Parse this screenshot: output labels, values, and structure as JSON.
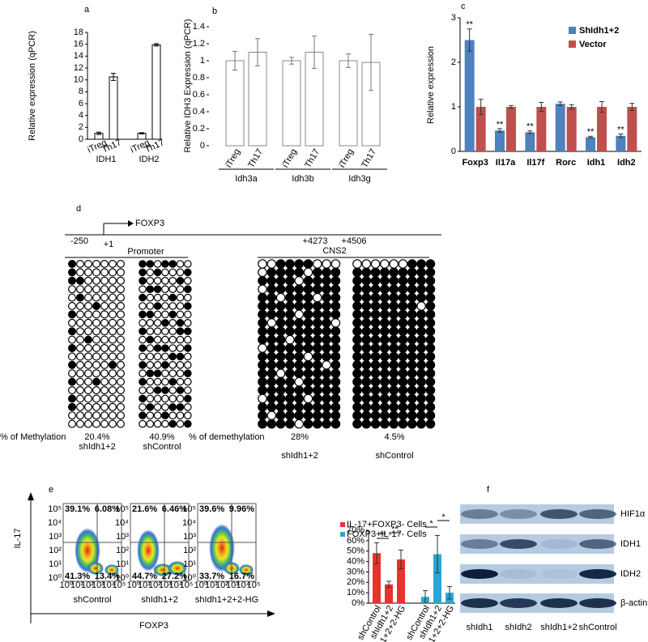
{
  "chart_data": [
    {
      "type": "bar",
      "label": "a",
      "ylabel": "Relative expression (qPCR)",
      "categories": [
        "iTreg",
        "Th17",
        "iTreg",
        "Th17"
      ],
      "groups": [
        "IDH1",
        "IDH2"
      ],
      "values": [
        1,
        10.5,
        1,
        15.9
      ],
      "errors": [
        0.2,
        0.6,
        0.1,
        0.2
      ],
      "color": "#ffffff",
      "ylim": [
        0,
        18
      ],
      "yticks": [
        0,
        2,
        4,
        6,
        8,
        10,
        12,
        14,
        16,
        18
      ]
    },
    {
      "type": "bar",
      "label": "b",
      "ylabel": "Relative IDH3 Expression (qPCR)",
      "categories": [
        "iTreg",
        "Th17",
        "iTreg",
        "Th17",
        "iTreg",
        "Th17"
      ],
      "groups": [
        "Idh3a",
        "Idh3b",
        "Idh3g"
      ],
      "values": [
        1.0,
        1.1,
        1.0,
        1.1,
        1.0,
        0.98
      ],
      "errors": [
        0.11,
        0.16,
        0.04,
        0.19,
        0.08,
        0.33
      ],
      "color": "#ffffff",
      "ylim": [
        0,
        1.4
      ],
      "yticks": [
        0,
        0.2,
        0.4,
        0.6,
        0.8,
        1,
        1.2,
        1.4
      ]
    },
    {
      "type": "bar",
      "label": "c",
      "ylabel": "Relative expression",
      "categories": [
        "Foxp3",
        "Il17a",
        "Il17f",
        "Rorc",
        "Idh1",
        "Idh2"
      ],
      "series": [
        {
          "name": "ShIdh1+2",
          "color": "#4f81bd",
          "values": [
            2.5,
            0.47,
            0.43,
            1.07,
            0.32,
            0.35
          ],
          "errors": [
            0.25,
            0.04,
            0.03,
            0.04,
            0.02,
            0.04
          ],
          "annotations": [
            "**",
            "**",
            "**",
            null,
            "**",
            "**"
          ]
        },
        {
          "name": "Vector",
          "color": "#c0504d",
          "values": [
            1,
            1,
            1,
            1,
            1,
            1
          ],
          "errors": [
            0.17,
            0.03,
            0.1,
            0.05,
            0.12,
            0.08
          ]
        }
      ],
      "ylim": [
        0,
        3
      ],
      "yticks": [
        0,
        1,
        2,
        3
      ],
      "legend": "top-right"
    },
    {
      "type": "bar",
      "categories": [
        "shControl",
        "shIdh1+2",
        "shIdh1+2+2-HG",
        "shControl",
        "shIdh1+2",
        "shIdh1+2+2-HG"
      ],
      "series": [
        {
          "name": "IL-17+FOXP3- Cells",
          "color": "#e8322d",
          "values": [
            48,
            18,
            42,
            null,
            null,
            null
          ],
          "errors": [
            10,
            3,
            9,
            null,
            null,
            null
          ]
        },
        {
          "name": "FOXP3+IL-17- Cells",
          "color": "#2aa6d6",
          "values": [
            null,
            null,
            null,
            6,
            47,
            10
          ],
          "errors": [
            null,
            null,
            null,
            6,
            18,
            6
          ]
        }
      ],
      "annotations": [
        "**",
        "**",
        "*",
        "*"
      ],
      "ylim": [
        0,
        70
      ],
      "yticks": [
        {
          "value": 0,
          "label": "0%"
        },
        {
          "value": 10,
          "label": "10%"
        },
        {
          "value": 20,
          "label": "20%"
        },
        {
          "value": 30,
          "label": "30%"
        },
        {
          "value": 40,
          "label": "40%"
        },
        {
          "value": 50,
          "label": "50%"
        },
        {
          "value": 60,
          "label": "60%"
        },
        {
          "value": 70,
          "label": "70%"
        }
      ],
      "legend": "top-left"
    }
  ],
  "panel_d": {
    "label": "d",
    "gene": "FOXP3",
    "positions": [
      "-250",
      "+1",
      "+4273",
      "+4506"
    ],
    "methylation_label": "% of Methylation",
    "demethylation_label": "% of demethylation",
    "promoter": {
      "name": "Promoter",
      "groups": [
        {
          "percent": "20.4%",
          "sample": "shIdh1+2",
          "rows": [
            [
              1,
              0,
              0,
              0,
              0,
              0,
              0
            ],
            [
              1,
              0,
              0,
              0,
              0,
              0,
              0
            ],
            [
              1,
              1,
              0,
              0,
              0,
              0,
              0
            ],
            [
              0,
              0,
              0,
              0,
              0,
              0,
              0
            ],
            [
              0,
              1,
              0,
              0,
              0,
              0,
              0
            ],
            [
              0,
              0,
              0,
              1,
              0,
              0,
              0
            ],
            [
              1,
              0,
              0,
              0,
              0,
              0,
              0
            ],
            [
              0,
              0,
              0,
              0,
              0,
              0,
              0
            ],
            [
              1,
              0,
              0,
              0,
              0,
              0,
              0
            ],
            [
              0,
              0,
              1,
              0,
              0,
              0,
              0
            ],
            [
              1,
              0,
              0,
              0,
              0,
              0,
              0
            ],
            [
              0,
              0,
              0,
              0,
              0,
              0,
              0
            ],
            [
              1,
              0,
              0,
              0,
              0,
              1,
              0
            ],
            [
              0,
              0,
              0,
              0,
              0,
              0,
              0
            ],
            [
              1,
              0,
              0,
              1,
              0,
              0,
              0
            ],
            [
              0,
              0,
              0,
              0,
              0,
              0,
              0
            ],
            [
              1,
              0,
              0,
              0,
              0,
              0,
              0
            ],
            [
              1,
              0,
              0,
              0,
              0,
              0,
              0
            ],
            [
              0,
              0,
              0,
              0,
              0,
              0,
              0
            ],
            [
              0,
              0,
              0,
              0,
              0,
              0,
              0
            ]
          ]
        },
        {
          "percent": "40.9%",
          "sample": "shControl",
          "rows": [
            [
              1,
              1,
              0,
              1,
              1,
              0,
              0
            ],
            [
              1,
              0,
              1,
              0,
              0,
              0,
              1
            ],
            [
              1,
              0,
              0,
              0,
              0,
              1,
              0
            ],
            [
              0,
              1,
              1,
              0,
              0,
              0,
              1
            ],
            [
              1,
              0,
              0,
              0,
              1,
              0,
              0
            ],
            [
              0,
              0,
              1,
              0,
              0,
              0,
              1
            ],
            [
              1,
              1,
              0,
              0,
              1,
              0,
              0
            ],
            [
              0,
              0,
              0,
              1,
              0,
              1,
              0
            ],
            [
              1,
              0,
              0,
              0,
              0,
              1,
              1
            ],
            [
              0,
              1,
              0,
              0,
              0,
              0,
              0
            ],
            [
              1,
              0,
              1,
              1,
              0,
              0,
              1
            ],
            [
              0,
              0,
              0,
              0,
              1,
              1,
              0
            ],
            [
              1,
              0,
              0,
              1,
              0,
              0,
              0
            ],
            [
              0,
              1,
              1,
              0,
              0,
              0,
              1
            ],
            [
              1,
              0,
              0,
              0,
              1,
              0,
              0
            ],
            [
              0,
              0,
              1,
              1,
              0,
              1,
              0
            ],
            [
              1,
              0,
              0,
              0,
              0,
              0,
              1
            ],
            [
              0,
              1,
              0,
              0,
              1,
              1,
              0
            ],
            [
              1,
              0,
              0,
              1,
              0,
              0,
              0
            ],
            [
              0,
              0,
              0,
              0,
              1,
              0,
              1
            ]
          ]
        }
      ]
    },
    "cns2": {
      "name": "CNS2",
      "groups": [
        {
          "percent": "28%",
          "sample": "shIdh1+2",
          "rows": [
            [
              0,
              0,
              1,
              1,
              1,
              1,
              0,
              0,
              0
            ],
            [
              0,
              1,
              1,
              1,
              1,
              0,
              1,
              1,
              1
            ],
            [
              1,
              1,
              1,
              1,
              0,
              1,
              1,
              1,
              1
            ],
            [
              0,
              1,
              1,
              1,
              1,
              1,
              1,
              1,
              1
            ],
            [
              1,
              1,
              0,
              1,
              1,
              1,
              0,
              1,
              1
            ],
            [
              1,
              1,
              1,
              1,
              1,
              1,
              1,
              1,
              1
            ],
            [
              1,
              1,
              1,
              1,
              0,
              1,
              1,
              1,
              1
            ],
            [
              1,
              0,
              1,
              1,
              1,
              1,
              1,
              1,
              0
            ],
            [
              1,
              1,
              1,
              1,
              1,
              1,
              1,
              1,
              1
            ],
            [
              1,
              1,
              1,
              0,
              1,
              1,
              1,
              1,
              1
            ],
            [
              0,
              1,
              1,
              1,
              1,
              1,
              1,
              1,
              1
            ],
            [
              1,
              1,
              1,
              1,
              1,
              0,
              1,
              1,
              1
            ],
            [
              1,
              1,
              1,
              1,
              1,
              1,
              1,
              0,
              1
            ],
            [
              1,
              1,
              0,
              1,
              1,
              1,
              1,
              1,
              1
            ],
            [
              1,
              1,
              1,
              1,
              0,
              1,
              1,
              1,
              1
            ],
            [
              1,
              1,
              1,
              1,
              1,
              1,
              1,
              1,
              1
            ],
            [
              0,
              1,
              1,
              1,
              1,
              0,
              1,
              1,
              1
            ],
            [
              1,
              1,
              1,
              1,
              1,
              1,
              1,
              1,
              1
            ],
            [
              1,
              0,
              1,
              1,
              1,
              1,
              1,
              1,
              1
            ],
            [
              1,
              1,
              1,
              1,
              0,
              1,
              1,
              1,
              1
            ]
          ]
        },
        {
          "percent": "4.5%",
          "sample": "shControl",
          "rows": [
            [
              0,
              0,
              0,
              0,
              0,
              0,
              1,
              1,
              1
            ],
            [
              1,
              1,
              1,
              1,
              1,
              1,
              1,
              1,
              1
            ],
            [
              1,
              1,
              1,
              1,
              1,
              1,
              1,
              1,
              1
            ],
            [
              1,
              1,
              1,
              1,
              1,
              1,
              1,
              1,
              1
            ],
            [
              1,
              1,
              1,
              1,
              1,
              1,
              1,
              1,
              1
            ],
            [
              1,
              1,
              1,
              1,
              1,
              1,
              1,
              0,
              1
            ],
            [
              1,
              1,
              1,
              1,
              1,
              1,
              1,
              1,
              1
            ],
            [
              1,
              1,
              1,
              1,
              1,
              1,
              1,
              1,
              1
            ],
            [
              1,
              1,
              1,
              1,
              1,
              1,
              1,
              1,
              1
            ],
            [
              1,
              1,
              1,
              1,
              1,
              1,
              1,
              1,
              1
            ],
            [
              1,
              1,
              1,
              1,
              1,
              1,
              1,
              1,
              1
            ],
            [
              1,
              1,
              1,
              1,
              1,
              1,
              1,
              1,
              1
            ],
            [
              1,
              1,
              1,
              1,
              1,
              1,
              1,
              1,
              1
            ],
            [
              1,
              1,
              1,
              1,
              1,
              1,
              1,
              1,
              1
            ],
            [
              1,
              1,
              1,
              1,
              1,
              1,
              1,
              1,
              1
            ],
            [
              1,
              1,
              1,
              1,
              1,
              1,
              1,
              1,
              1
            ],
            [
              1,
              1,
              1,
              1,
              1,
              1,
              1,
              1,
              1
            ],
            [
              1,
              1,
              1,
              1,
              1,
              1,
              1,
              1,
              1
            ],
            [
              1,
              1,
              1,
              1,
              1,
              1,
              1,
              1,
              1
            ],
            [
              1,
              1,
              1,
              1,
              1,
              1,
              1,
              1,
              1
            ]
          ]
        }
      ]
    }
  },
  "panel_e_flow": {
    "label": "e",
    "y_axis": "IL-17",
    "x_axis": "FOXP3",
    "ticks": [
      "10⁰",
      "10¹",
      "10²",
      "10³",
      "10⁴",
      "10⁵"
    ],
    "plots": [
      {
        "sample": "shControl",
        "quadrants": [
          "39.1%",
          "6.08%",
          "41.3%",
          "13.4%"
        ]
      },
      {
        "sample": "shIdh1+2",
        "quadrants": [
          "21.6%",
          "6.46%",
          "44.7%",
          "27.2%"
        ]
      },
      {
        "sample": "shIdh1+2+2-HG",
        "quadrants": [
          "39.6%",
          "9.96%",
          "33.7%",
          "16.7%"
        ]
      }
    ]
  },
  "panel_f": {
    "label": "f",
    "proteins": [
      "HIF1α",
      "IDH1",
      "IDH2",
      "β-actin"
    ],
    "lanes": [
      "shIdh1",
      "shIdh2",
      "shIdh1+2",
      "shControl"
    ]
  }
}
